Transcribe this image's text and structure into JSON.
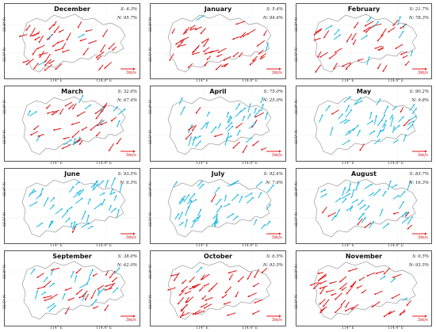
{
  "figure": {
    "x_ticks": [
      "114° E",
      "114.4° E"
    ],
    "y_ticks": [
      "22.8° N",
      "22.5° N"
    ],
    "colors": {
      "south": "#19b7e0",
      "north": "#e01818",
      "boundary": "#8c8c8c"
    },
    "panels": [
      {
        "month": "December",
        "s": "S: 4.3%",
        "n": "N: 95.7%",
        "s_frac": 0.043,
        "scale": "3m/s"
      },
      {
        "month": "January",
        "s": "S: 5.4%",
        "n": "N: 94.6%",
        "s_frac": 0.054,
        "scale": "3m/s"
      },
      {
        "month": "February",
        "s": "S: 21.7%",
        "n": "N: 78.3%",
        "s_frac": 0.217,
        "scale": "3m/s"
      },
      {
        "month": "March",
        "s": "S: 32.6%",
        "n": "N: 67.4%",
        "s_frac": 0.326,
        "scale": "3m/s"
      },
      {
        "month": "April",
        "s": "S: 75.0%",
        "n": "N: 25.0%",
        "s_frac": 0.75,
        "scale": "3m/s"
      },
      {
        "month": "May",
        "s": "S: 90.2%",
        "n": "N: 9.8%",
        "s_frac": 0.902,
        "scale": "3m/s"
      },
      {
        "month": "June",
        "s": "S: 93.5%",
        "n": "N: 6.5%",
        "s_frac": 0.935,
        "scale": "3m/s"
      },
      {
        "month": "July",
        "s": "S: 92.4%",
        "n": "N: 7.6%",
        "s_frac": 0.924,
        "scale": "3m/s"
      },
      {
        "month": "August",
        "s": "S: 83.7%",
        "n": "N: 16.3%",
        "s_frac": 0.837,
        "scale": "3m/s"
      },
      {
        "month": "September",
        "s": "S: 38.0%",
        "n": "N: 62.0%",
        "s_frac": 0.38,
        "scale": "3m/s"
      },
      {
        "month": "October",
        "s": "S: 6.5%",
        "n": "N: 93.5%",
        "s_frac": 0.065,
        "scale": "3m/s"
      },
      {
        "month": "November",
        "s": "S: 6.5%",
        "n": "N: 93.5%",
        "s_frac": 0.065,
        "scale": "3m/s"
      }
    ]
  }
}
